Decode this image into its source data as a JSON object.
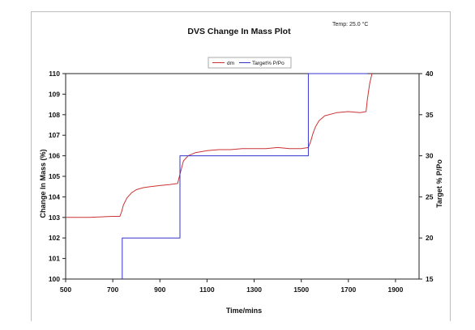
{
  "chart_data": {
    "type": "line",
    "title": "DVS Change In Mass Plot",
    "annotation": "Temp:  25.0 °C",
    "xlabel": "Time/mins",
    "ylabel": "Change In Mass (%)",
    "y2label": "Target % P/Po",
    "xlim": [
      500,
      2000
    ],
    "ylim": [
      100,
      110
    ],
    "y2lim": [
      15,
      40
    ],
    "x_ticks": [
      "500",
      "700",
      "900",
      "1100",
      "1300",
      "1500",
      "1700",
      "1900"
    ],
    "y_ticks": [
      "100",
      "101",
      "102",
      "103",
      "104",
      "105",
      "106",
      "107",
      "108",
      "109",
      "110"
    ],
    "y2_ticks": [
      "15",
      "20",
      "25",
      "30",
      "35",
      "40"
    ],
    "legend_position": "top-center",
    "grid": false,
    "series": [
      {
        "name": "dm",
        "axis": "left",
        "color": "#cc3333",
        "x": [
          500,
          600,
          700,
          730,
          738,
          745,
          760,
          780,
          800,
          830,
          860,
          900,
          940,
          975,
          985,
          992,
          1000,
          1020,
          1050,
          1100,
          1150,
          1200,
          1250,
          1300,
          1350,
          1400,
          1450,
          1500,
          1530,
          1540,
          1550,
          1560,
          1575,
          1600,
          1650,
          1700,
          1750,
          1775,
          1780,
          1790,
          1800
        ],
        "y": [
          103.0,
          103.0,
          103.05,
          103.05,
          103.3,
          103.6,
          103.95,
          104.2,
          104.35,
          104.45,
          104.5,
          104.55,
          104.6,
          104.65,
          105.1,
          105.4,
          105.75,
          106.0,
          106.15,
          106.25,
          106.3,
          106.3,
          106.35,
          106.35,
          106.35,
          106.4,
          106.35,
          106.35,
          106.4,
          106.7,
          107.1,
          107.4,
          107.7,
          107.95,
          108.1,
          108.15,
          108.1,
          108.15,
          108.7,
          109.5,
          110.0
        ]
      },
      {
        "name": "Target% P/Po",
        "axis": "right",
        "color": "#3333cc",
        "x": [
          740,
          740,
          985,
          985,
          1530,
          1530,
          1780
        ],
        "y": [
          15,
          20,
          20,
          30,
          30,
          40,
          40
        ]
      }
    ]
  }
}
